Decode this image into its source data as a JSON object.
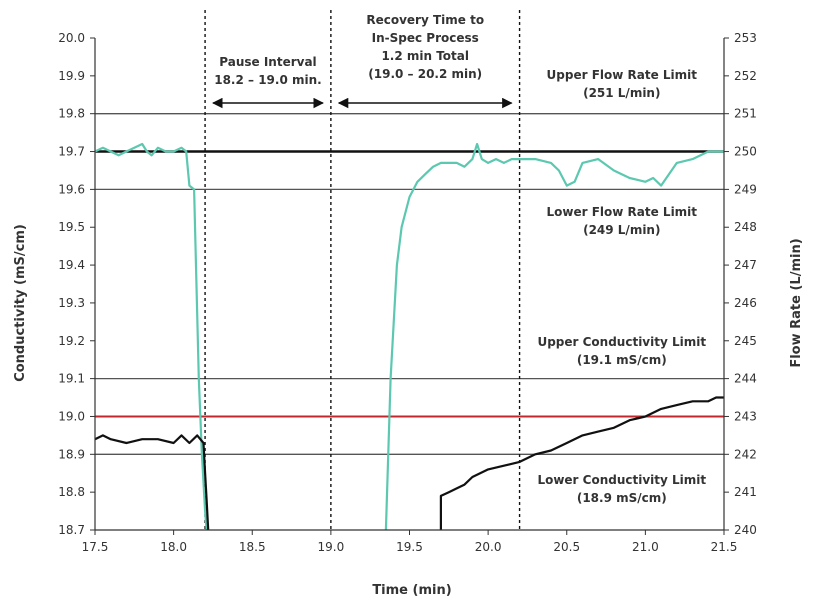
{
  "chart_data": {
    "type": "line",
    "xlabel": "Time (min)",
    "ylabel": "Conductivity (mS/cm)",
    "y2label": "Flow Rate (L/min)",
    "xlim": [
      17.5,
      21.5
    ],
    "ylim": [
      18.7,
      20.0
    ],
    "y2lim": [
      240,
      253
    ],
    "x_ticks": [
      "17.5",
      "18.0",
      "18.5",
      "19.0",
      "19.5",
      "20.0",
      "20.5",
      "21.0",
      "21.5"
    ],
    "y_ticks": [
      "18.7",
      "18.8",
      "18.9",
      "19.0",
      "19.1",
      "19.2",
      "19.3",
      "19.4",
      "19.5",
      "19.6",
      "19.7",
      "19.8",
      "19.9",
      "20.0"
    ],
    "y2_ticks": [
      "240",
      "241",
      "242",
      "243",
      "244",
      "245",
      "246",
      "247",
      "248",
      "249",
      "250",
      "251",
      "252",
      "253"
    ],
    "grid": false,
    "colors": {
      "flow": "#5cc8b0",
      "conductivity": "#111111",
      "target": "#c0282d",
      "limit": "#555555"
    },
    "limit_lines": [
      {
        "y": 19.8,
        "axis": "left"
      },
      {
        "y": 19.7,
        "axis": "left",
        "bold": true
      },
      {
        "y": 19.6,
        "axis": "left"
      },
      {
        "y": 19.1,
        "axis": "left"
      },
      {
        "y": 19.0,
        "axis": "left",
        "color": "target"
      },
      {
        "y": 18.9,
        "axis": "left"
      }
    ],
    "vlines": [
      18.2,
      19.0,
      20.2
    ],
    "series": [
      {
        "axis": "right",
        "color": "flow",
        "x": [
          17.5,
          17.55,
          17.6,
          17.65,
          17.7,
          17.75,
          17.8,
          17.83,
          17.86,
          17.9,
          17.95,
          18.0,
          18.05,
          18.08,
          18.1,
          18.13,
          18.16,
          18.18,
          18.2,
          18.21
        ],
        "y": [
          250.0,
          250.1,
          250.0,
          249.9,
          250.0,
          250.1,
          250.2,
          250.0,
          249.9,
          250.1,
          250.0,
          250.0,
          250.1,
          250.0,
          249.1,
          249.0,
          244.0,
          242.0,
          240.5,
          240.0
        ]
      },
      {
        "axis": "right",
        "color": "flow",
        "x": [
          19.35,
          19.38,
          19.42,
          19.45,
          19.5,
          19.55,
          19.6,
          19.65,
          19.7,
          19.8,
          19.85,
          19.9,
          19.93,
          19.96,
          20.0,
          20.05,
          20.1,
          20.15,
          20.2,
          20.3,
          20.4,
          20.45,
          20.5,
          20.55,
          20.6,
          20.7,
          20.8,
          20.9,
          21.0,
          21.05,
          21.1,
          21.2,
          21.3,
          21.4,
          21.5
        ],
        "y": [
          240.0,
          244.0,
          247.0,
          248.0,
          248.8,
          249.2,
          249.4,
          249.6,
          249.7,
          249.7,
          249.6,
          249.8,
          250.2,
          249.8,
          249.7,
          249.8,
          249.7,
          249.8,
          249.8,
          249.8,
          249.7,
          249.5,
          249.1,
          249.2,
          249.7,
          249.8,
          249.5,
          249.3,
          249.2,
          249.3,
          249.1,
          249.7,
          249.8,
          250.0,
          250.0
        ]
      },
      {
        "axis": "left",
        "color": "conductivity",
        "x": [
          17.5,
          17.55,
          17.6,
          17.7,
          17.8,
          17.9,
          18.0,
          18.05,
          18.1,
          18.15,
          18.19,
          18.2,
          18.21,
          18.22
        ],
        "y": [
          18.94,
          18.95,
          18.94,
          18.93,
          18.94,
          18.94,
          18.93,
          18.95,
          18.93,
          18.95,
          18.93,
          18.85,
          18.78,
          18.7
        ]
      },
      {
        "axis": "left",
        "color": "conductivity",
        "x": [
          19.7,
          19.7,
          19.75,
          19.8,
          19.85,
          19.9,
          20.0,
          20.1,
          20.2,
          20.3,
          20.4,
          20.5,
          20.6,
          20.7,
          20.8,
          20.9,
          21.0,
          21.1,
          21.2,
          21.3,
          21.4,
          21.45,
          21.5
        ],
        "y": [
          18.7,
          18.79,
          18.8,
          18.81,
          18.82,
          18.84,
          18.86,
          18.87,
          18.88,
          18.9,
          18.91,
          18.93,
          18.95,
          18.96,
          18.97,
          18.99,
          19.0,
          19.02,
          19.03,
          19.04,
          19.04,
          19.05,
          19.05
        ]
      }
    ],
    "annotations": [
      {
        "id": "pause",
        "lines": [
          "Pause Interval",
          "18.2 – 19.0 min."
        ]
      },
      {
        "id": "recovery",
        "lines": [
          "Recovery Time to",
          "In-Spec Process",
          "1.2 min Total",
          "(19.0 – 20.2 min)"
        ]
      },
      {
        "id": "upper-flow",
        "lines": [
          "Upper Flow Rate Limit",
          "(251 L/min)"
        ]
      },
      {
        "id": "lower-flow",
        "lines": [
          "Lower Flow Rate Limit",
          "(249 L/min)"
        ]
      },
      {
        "id": "upper-cond",
        "lines": [
          "Upper Conductivity Limit",
          "(19.1 mS/cm)"
        ]
      },
      {
        "id": "lower-cond",
        "lines": [
          "Lower Conductivity Limit",
          "(18.9 mS/cm)"
        ]
      }
    ]
  }
}
